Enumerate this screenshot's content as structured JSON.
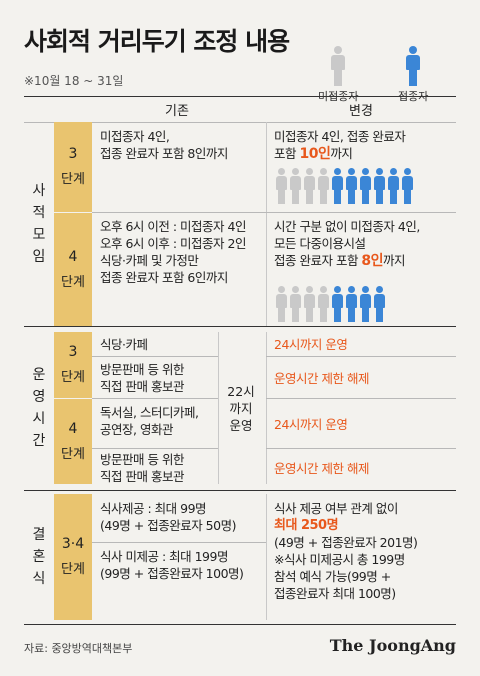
{
  "title": "사회적 거리두기 조정 내용",
  "period": "※10월 18 ~ 31일",
  "legend": {
    "unvaccinated": "미접종자",
    "vaccinated": "접종자"
  },
  "colors": {
    "unvaccinated": "#c9c9c9",
    "vaccinated": "#3b86d6",
    "accent": "#e8581c",
    "step_bg": "#e9c46f"
  },
  "headers": {
    "before": "기존",
    "after": "변경"
  },
  "sections": {
    "gathering": {
      "label": [
        "사",
        "적",
        "모",
        "임"
      ],
      "step3": {
        "num": "3",
        "unit": "단계",
        "before": [
          "미접종자 4인,",
          "접종 완료자 포함 8인까지"
        ],
        "after_pre": "미접종자 4인, 접종 완료자",
        "after_line2_pre": "포함 ",
        "after_em": "10인",
        "after_line2_post": "까지",
        "people": {
          "unvaccinated": 4,
          "vaccinated": 6
        }
      },
      "step4": {
        "num": "4",
        "unit": "단계",
        "before": [
          "오후 6시 이전 : 미접종자 4인",
          "오후 6시 이후 : 미접종자 2인",
          "식당·카페 및 가정만",
          "접종 완료자 포함 6인까지"
        ],
        "after_lines": [
          "시간 구분 없이 미접종자 4인,",
          "모든 다중이용시설"
        ],
        "after_line3_pre": "접종 완료자 포함 ",
        "after_em": "8인",
        "after_line3_post": "까지",
        "people": {
          "unvaccinated": 4,
          "vaccinated": 4
        }
      }
    },
    "hours": {
      "label": [
        "운",
        "영",
        "시",
        "간"
      ],
      "step3": {
        "num": "3",
        "unit": "단계",
        "row1": "식당·카페",
        "row2": [
          "방문판매 등 위한",
          "직접 판매 홍보관"
        ],
        "after1": "24시까지 운영",
        "after2": "운영시간 제한 해제"
      },
      "mid": [
        "22시",
        "까지",
        "운영"
      ],
      "step4": {
        "num": "4",
        "unit": "단계",
        "row1": [
          "독서실, 스터디카페,",
          "공연장, 영화관"
        ],
        "row2": [
          "방문판매 등 위한",
          "직접 판매 홍보관"
        ],
        "after1": "24시까지 운영",
        "after2": "운영시간 제한 해제"
      }
    },
    "wedding": {
      "label": [
        "결",
        "혼",
        "식"
      ],
      "step": {
        "num": "3·4",
        "unit": "단계"
      },
      "before1": [
        "식사제공 : 최대 99명",
        "(49명 + 접종완료자 50명)"
      ],
      "before2": [
        "식사 미제공 : 최대 199명",
        "(99명 + 접종완료자 100명)"
      ],
      "after_l1": "식사 제공 여부 관계 없이",
      "after_em": "최대 250명",
      "after_rest": [
        "(49명 + 접종완료자 201명)",
        "※식사 미제공시 총 199명",
        "참석 예식 가능(99명 +",
        "접종완료자 최대 100명)"
      ]
    }
  },
  "source": "자료: 중앙방역대책본부",
  "logo": "The JoongAng"
}
